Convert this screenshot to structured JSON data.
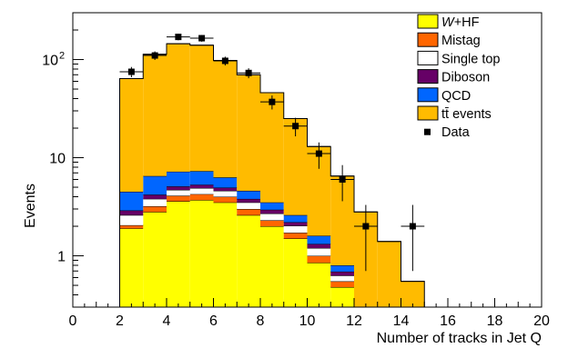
{
  "chart_data": {
    "type": "bar",
    "subtype": "stacked-histogram",
    "xlabel": "Number of tracks in Jet Q",
    "ylabel": "Events",
    "xlim": [
      0,
      20
    ],
    "ylim": [
      0.3,
      300
    ],
    "y_scale": "log",
    "bin_width": 1,
    "x_ticks": [
      0,
      2,
      4,
      6,
      8,
      10,
      12,
      14,
      16,
      18,
      20
    ],
    "y_ticks": [
      {
        "value": 1,
        "label": "1"
      },
      {
        "value": 10,
        "label": "10"
      },
      {
        "value": 100,
        "label": "10",
        "sup": "2"
      }
    ],
    "bin_lows": [
      2,
      3,
      4,
      5,
      6,
      7,
      8,
      9,
      10,
      11,
      12,
      13,
      14
    ],
    "stacked_series": [
      {
        "name": "W+HF",
        "color": "#ffff00",
        "values": [
          1.9,
          2.8,
          3.6,
          3.7,
          3.5,
          2.6,
          2.0,
          1.5,
          0.85,
          0.48,
          0,
          0,
          0
        ]
      },
      {
        "name": "Mistag",
        "color": "#ff6600",
        "values": [
          0.15,
          0.4,
          0.5,
          0.55,
          0.5,
          0.4,
          0.3,
          0.22,
          0.15,
          0.07,
          0,
          0,
          0
        ]
      },
      {
        "name": "Single top",
        "color": "#ffffff",
        "values": [
          0.55,
          0.6,
          0.6,
          0.65,
          0.6,
          0.5,
          0.4,
          0.3,
          0.2,
          0.08,
          0,
          0,
          0
        ]
      },
      {
        "name": "Diboson",
        "color": "#660066",
        "values": [
          0.3,
          0.4,
          0.4,
          0.4,
          0.35,
          0.3,
          0.25,
          0.18,
          0.12,
          0.06,
          0,
          0,
          0
        ]
      },
      {
        "name": "QCD",
        "color": "#0066ff",
        "values": [
          1.6,
          2.3,
          2.1,
          2.0,
          1.35,
          0.8,
          0.55,
          0.4,
          0.28,
          0.11,
          0,
          0,
          0
        ]
      },
      {
        "name": "tt̄ events",
        "color": "#ffbb00",
        "values": [
          59.5,
          106.5,
          137.8,
          132.7,
          91.7,
          65.4,
          42.5,
          22.4,
          11.4,
          5.7,
          2.8,
          1.4,
          0.55
        ]
      }
    ],
    "data_series": {
      "name": "Data",
      "x": [
        2.5,
        3.5,
        4.5,
        5.5,
        6.5,
        7.5,
        8.5,
        9.5,
        10.5,
        11.5,
        12.5,
        14.5
      ],
      "y": [
        75,
        110,
        170,
        165,
        97,
        73,
        37,
        21,
        11,
        6,
        2,
        2
      ],
      "err_low": [
        9,
        11,
        13,
        13,
        10,
        8.5,
        6,
        4.5,
        3.3,
        2.4,
        1.3,
        1.3
      ],
      "err_high": [
        9,
        11,
        13,
        13,
        10,
        8.5,
        6,
        4.5,
        3.3,
        2.4,
        1.3,
        1.3
      ]
    },
    "legend": {
      "placement": "top-right",
      "entries": [
        {
          "label": "W",
          "label_suffix": "+HF",
          "italic_prefix": true,
          "color": "#ffff00",
          "marker": "box"
        },
        {
          "label": "Mistag",
          "color": "#ff6600",
          "marker": "box"
        },
        {
          "label": "Single top",
          "color": "#ffffff",
          "marker": "box"
        },
        {
          "label": "Diboson",
          "color": "#660066",
          "marker": "box"
        },
        {
          "label": "QCD",
          "color": "#0066ff",
          "marker": "box"
        },
        {
          "label": "tt̄ events",
          "color": "#ffbb00",
          "marker": "box"
        },
        {
          "label": "Data",
          "color": "#000000",
          "marker": "point"
        }
      ]
    },
    "grid": false
  }
}
